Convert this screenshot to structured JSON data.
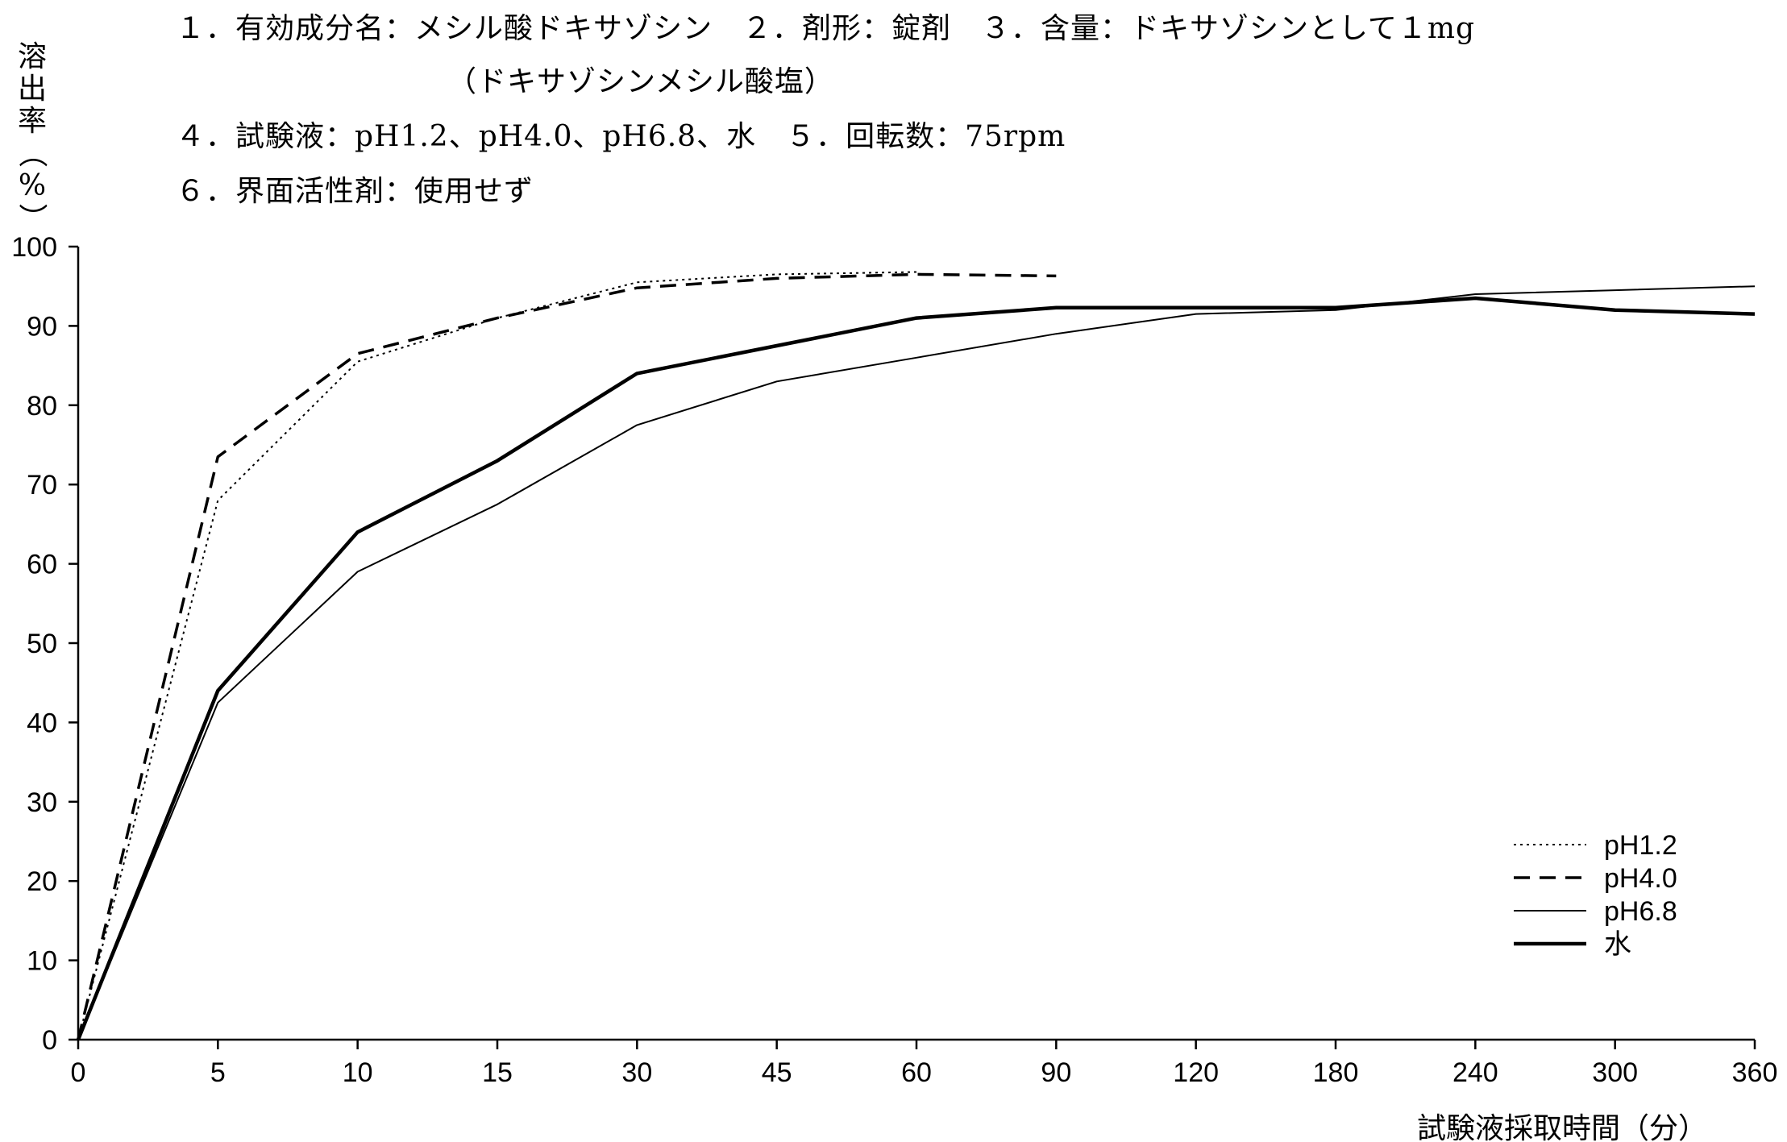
{
  "header": {
    "line1": "１．有効成分名：メシル酸ドキサゾシン　２．剤形：錠剤　３．含量：ドキサゾシンとして１mg",
    "line2": "（ドキサゾシンメシル酸塩）",
    "line3": "４．試験液：pH1.2、pH4.0、pH6.8、水　５．回転数：75rpm",
    "line4": "６．界面活性剤：使用せず"
  },
  "chart_data": {
    "type": "line",
    "title": "",
    "xlabel": "試験液採取時間（分）",
    "ylabel": [
      "溶",
      "出",
      "率",
      "（",
      "%",
      "）"
    ],
    "categories": [
      "0",
      "5",
      "10",
      "15",
      "30",
      "45",
      "60",
      "90",
      "120",
      "180",
      "240",
      "300",
      "360"
    ],
    "ylim": [
      0,
      100
    ],
    "yticks": [
      0,
      10,
      20,
      30,
      40,
      50,
      60,
      70,
      80,
      90,
      100
    ],
    "grid": false,
    "legend_position": "bottom-right",
    "series": [
      {
        "name": "pH1.2",
        "style": "dotted",
        "values": [
          0,
          68,
          85.5,
          91,
          95.5,
          96.5,
          96.8,
          null,
          null,
          null,
          null,
          null,
          null
        ]
      },
      {
        "name": "pH4.0",
        "style": "dashed",
        "values": [
          0,
          73.5,
          86.5,
          91,
          94.8,
          96,
          96.5,
          96.3,
          null,
          null,
          null,
          null,
          null
        ]
      },
      {
        "name": "pH6.8",
        "style": "thin",
        "values": [
          0,
          42.5,
          59,
          67.5,
          77.5,
          83,
          86,
          89,
          91.5,
          92,
          94,
          94.5,
          95
        ]
      },
      {
        "name": "水",
        "style": "thick",
        "values": [
          0,
          44,
          64,
          73,
          84,
          87.5,
          91,
          92.3,
          92.3,
          92.3,
          93.5,
          92,
          91.5
        ]
      }
    ]
  }
}
